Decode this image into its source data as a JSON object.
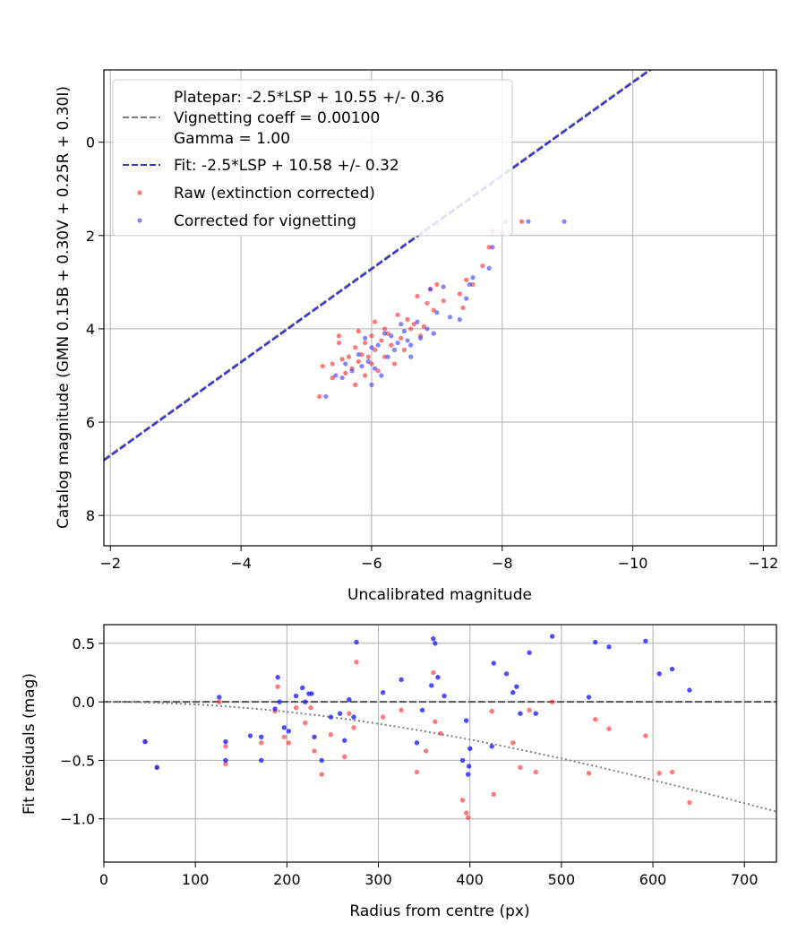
{
  "chart_data": [
    {
      "type": "scatter",
      "xlabel": "Uncalibrated magnitude",
      "ylabel": "Catalog magnitude (GMN 0.15B + 0.30V + 0.25R + 0.30I)",
      "xlim": [
        -1.9,
        -12.2
      ],
      "ylim": [
        8.65,
        -1.55
      ],
      "x_inverted": true,
      "y_inverted": true,
      "xticks": [
        -2,
        -4,
        -6,
        -8,
        -10,
        -12
      ],
      "xtick_labels": [
        "−2",
        "−4",
        "−6",
        "−8",
        "−10",
        "−12"
      ],
      "yticks": [
        0,
        2,
        4,
        6,
        8
      ],
      "ytick_labels": [
        "0",
        "2",
        "4",
        "6",
        "8"
      ],
      "grid": true,
      "legend_position": "top-left",
      "lines": [
        {
          "label_lines": [
            "Platepar: -2.5*LSP + 10.55 +/- 0.36",
            "Vignetting coeff = 0.00100",
            "Gamma = 1.00"
          ],
          "style": "dashed",
          "color": "#808080",
          "slope": -2.5,
          "intercept": 10.55
        },
        {
          "label_lines": [
            "Fit: -2.5*LSP + 10.58 +/- 0.32"
          ],
          "style": "dashed",
          "color": "#3333dd",
          "slope": -2.5,
          "intercept": 10.58
        }
      ],
      "series": [
        {
          "name": "Raw (extinction corrected)",
          "color": "#ff2222",
          "points": [
            [
              -5.2,
              5.45
            ],
            [
              -5.25,
              4.8
            ],
            [
              -5.4,
              4.75
            ],
            [
              -5.4,
              5.05
            ],
            [
              -5.5,
              4.15
            ],
            [
              -5.5,
              4.3
            ],
            [
              -5.55,
              4.65
            ],
            [
              -5.6,
              4.95
            ],
            [
              -5.65,
              4.6
            ],
            [
              -5.7,
              4.85
            ],
            [
              -5.75,
              5.2
            ],
            [
              -5.75,
              4.4
            ],
            [
              -5.8,
              4.05
            ],
            [
              -5.8,
              4.7
            ],
            [
              -5.85,
              4.55
            ],
            [
              -5.9,
              5.0
            ],
            [
              -5.9,
              4.3
            ],
            [
              -5.95,
              4.6
            ],
            [
              -6.0,
              4.15
            ],
            [
              -6.0,
              4.75
            ],
            [
              -6.05,
              3.85
            ],
            [
              -6.05,
              4.45
            ],
            [
              -6.1,
              4.9
            ],
            [
              -6.15,
              4.25
            ],
            [
              -6.2,
              4.0
            ],
            [
              -6.2,
              4.6
            ],
            [
              -6.25,
              4.1
            ],
            [
              -6.3,
              4.35
            ],
            [
              -6.35,
              4.75
            ],
            [
              -6.4,
              3.7
            ],
            [
              -6.45,
              4.2
            ],
            [
              -6.5,
              4.45
            ],
            [
              -6.55,
              3.8
            ],
            [
              -6.6,
              4.0
            ],
            [
              -6.65,
              3.9
            ],
            [
              -6.7,
              3.3
            ],
            [
              -6.75,
              4.15
            ],
            [
              -6.8,
              3.95
            ],
            [
              -6.85,
              3.45
            ],
            [
              -6.9,
              3.15
            ],
            [
              -6.95,
              3.6
            ],
            [
              -7.0,
              3.05
            ],
            [
              -7.1,
              3.4
            ],
            [
              -7.35,
              3.25
            ],
            [
              -7.4,
              3.55
            ],
            [
              -7.45,
              2.95
            ],
            [
              -7.55,
              3.05
            ],
            [
              -7.7,
              2.65
            ],
            [
              -7.8,
              2.25
            ],
            [
              -7.85,
              1.9
            ],
            [
              -8.05,
              1.7
            ],
            [
              -8.3,
              1.7
            ]
          ]
        },
        {
          "name": "Corrected for vignetting",
          "color": "#3333ff",
          "points": [
            [
              -5.3,
              5.45
            ],
            [
              -5.45,
              5.0
            ],
            [
              -5.55,
              5.05
            ],
            [
              -5.6,
              4.75
            ],
            [
              -5.7,
              4.9
            ],
            [
              -5.8,
              4.55
            ],
            [
              -5.85,
              4.8
            ],
            [
              -5.9,
              4.2
            ],
            [
              -5.95,
              4.7
            ],
            [
              -6.0,
              4.4
            ],
            [
              -6.0,
              5.2
            ],
            [
              -6.05,
              4.85
            ],
            [
              -6.1,
              4.35
            ],
            [
              -6.15,
              5.0
            ],
            [
              -6.2,
              4.1
            ],
            [
              -6.25,
              4.6
            ],
            [
              -6.3,
              4.15
            ],
            [
              -6.35,
              4.45
            ],
            [
              -6.4,
              4.3
            ],
            [
              -6.45,
              3.9
            ],
            [
              -6.5,
              4.05
            ],
            [
              -6.55,
              4.25
            ],
            [
              -6.6,
              4.35
            ],
            [
              -6.6,
              4.6
            ],
            [
              -6.7,
              3.85
            ],
            [
              -6.75,
              4.2
            ],
            [
              -6.85,
              4.0
            ],
            [
              -6.9,
              3.15
            ],
            [
              -6.95,
              4.1
            ],
            [
              -7.0,
              3.65
            ],
            [
              -7.1,
              3.1
            ],
            [
              -7.2,
              3.75
            ],
            [
              -7.35,
              3.8
            ],
            [
              -7.45,
              3.35
            ],
            [
              -7.5,
              3.05
            ],
            [
              -7.55,
              2.9
            ],
            [
              -7.8,
              2.7
            ],
            [
              -7.85,
              2.25
            ],
            [
              -8.0,
              1.95
            ],
            [
              -8.4,
              1.7
            ],
            [
              -8.95,
              1.7
            ]
          ]
        }
      ]
    },
    {
      "type": "scatter",
      "xlabel": "Radius from centre (px)",
      "ylabel": "Fit residuals (mag)",
      "xlim": [
        0,
        735
      ],
      "ylim": [
        -1.37,
        0.66
      ],
      "xticks": [
        0,
        100,
        200,
        300,
        400,
        500,
        600,
        700
      ],
      "xtick_labels": [
        "0",
        "100",
        "200",
        "300",
        "400",
        "500",
        "600",
        "700"
      ],
      "yticks": [
        0.5,
        0.0,
        -0.5,
        -1.0
      ],
      "ytick_labels": [
        "0.5",
        "0.0",
        "−0.5",
        "−1.0"
      ],
      "grid": true,
      "reference_lines": [
        {
          "style": "dashed",
          "color": "#555555",
          "y": 0.0
        },
        {
          "style": "dotted",
          "color": "#808080",
          "curve": "vignetting",
          "coeff": 0.001
        }
      ],
      "series": [
        {
          "name": "Raw",
          "color": "#ff2222",
          "points": [
            [
              45,
              -0.34
            ],
            [
              58,
              -0.56
            ],
            [
              126,
              0.0
            ],
            [
              133,
              -0.38
            ],
            [
              133,
              -0.53
            ],
            [
              172,
              -0.35
            ],
            [
              187,
              -0.08
            ],
            [
              190,
              0.13
            ],
            [
              197,
              -0.3
            ],
            [
              202,
              -0.35
            ],
            [
              210,
              -0.05
            ],
            [
              220,
              -0.18
            ],
            [
              226,
              -0.05
            ],
            [
              230,
              -0.42
            ],
            [
              238,
              -0.62
            ],
            [
              248,
              -0.28
            ],
            [
              263,
              -0.47
            ],
            [
              268,
              -0.1
            ],
            [
              273,
              -0.22
            ],
            [
              276,
              0.34
            ],
            [
              305,
              -0.13
            ],
            [
              325,
              -0.07
            ],
            [
              342,
              -0.6
            ],
            [
              352,
              -0.42
            ],
            [
              360,
              0.25
            ],
            [
              362,
              -0.17
            ],
            [
              368,
              -0.27
            ],
            [
              392,
              -0.84
            ],
            [
              396,
              -0.95
            ],
            [
              398,
              -0.99
            ],
            [
              424,
              -0.08
            ],
            [
              426,
              -0.79
            ],
            [
              447,
              -0.35
            ],
            [
              455,
              -0.56
            ],
            [
              465,
              -0.07
            ],
            [
              472,
              -0.6
            ],
            [
              490,
              0.0
            ],
            [
              530,
              -0.61
            ],
            [
              537,
              -0.15
            ],
            [
              552,
              -0.23
            ],
            [
              592,
              -0.29
            ],
            [
              607,
              -0.61
            ],
            [
              621,
              -0.6
            ],
            [
              640,
              -0.86
            ]
          ]
        },
        {
          "name": "Corrected",
          "color": "#2222ff",
          "points": [
            [
              45,
              -0.34
            ],
            [
              58,
              -0.56
            ],
            [
              126,
              0.04
            ],
            [
              133,
              -0.34
            ],
            [
              133,
              -0.5
            ],
            [
              160,
              -0.29
            ],
            [
              172,
              -0.3
            ],
            [
              172,
              -0.5
            ],
            [
              187,
              -0.06
            ],
            [
              190,
              0.21
            ],
            [
              192,
              0.0
            ],
            [
              197,
              -0.22
            ],
            [
              202,
              -0.25
            ],
            [
              210,
              0.05
            ],
            [
              217,
              0.12
            ],
            [
              220,
              0.0
            ],
            [
              224,
              0.07
            ],
            [
              227,
              0.07
            ],
            [
              230,
              -0.3
            ],
            [
              238,
              -0.5
            ],
            [
              248,
              -0.13
            ],
            [
              258,
              -0.1
            ],
            [
              263,
              -0.33
            ],
            [
              268,
              0.02
            ],
            [
              273,
              -0.13
            ],
            [
              276,
              0.51
            ],
            [
              305,
              0.08
            ],
            [
              325,
              0.19
            ],
            [
              342,
              -0.35
            ],
            [
              348,
              -0.07
            ],
            [
              358,
              0.14
            ],
            [
              360,
              0.54
            ],
            [
              362,
              0.5
            ],
            [
              365,
              0.21
            ],
            [
              372,
              0.05
            ],
            [
              392,
              -0.5
            ],
            [
              396,
              -0.16
            ],
            [
              398,
              -0.62
            ],
            [
              399,
              -0.55
            ],
            [
              400,
              -0.4
            ],
            [
              424,
              -0.38
            ],
            [
              426,
              0.33
            ],
            [
              440,
              0.24
            ],
            [
              447,
              0.08
            ],
            [
              451,
              0.13
            ],
            [
              455,
              -0.1
            ],
            [
              465,
              0.42
            ],
            [
              472,
              -0.1
            ],
            [
              490,
              0.56
            ],
            [
              530,
              0.04
            ],
            [
              537,
              0.51
            ],
            [
              552,
              0.47
            ],
            [
              592,
              0.52
            ],
            [
              607,
              0.24
            ],
            [
              621,
              0.28
            ],
            [
              640,
              0.1
            ]
          ]
        }
      ]
    }
  ]
}
